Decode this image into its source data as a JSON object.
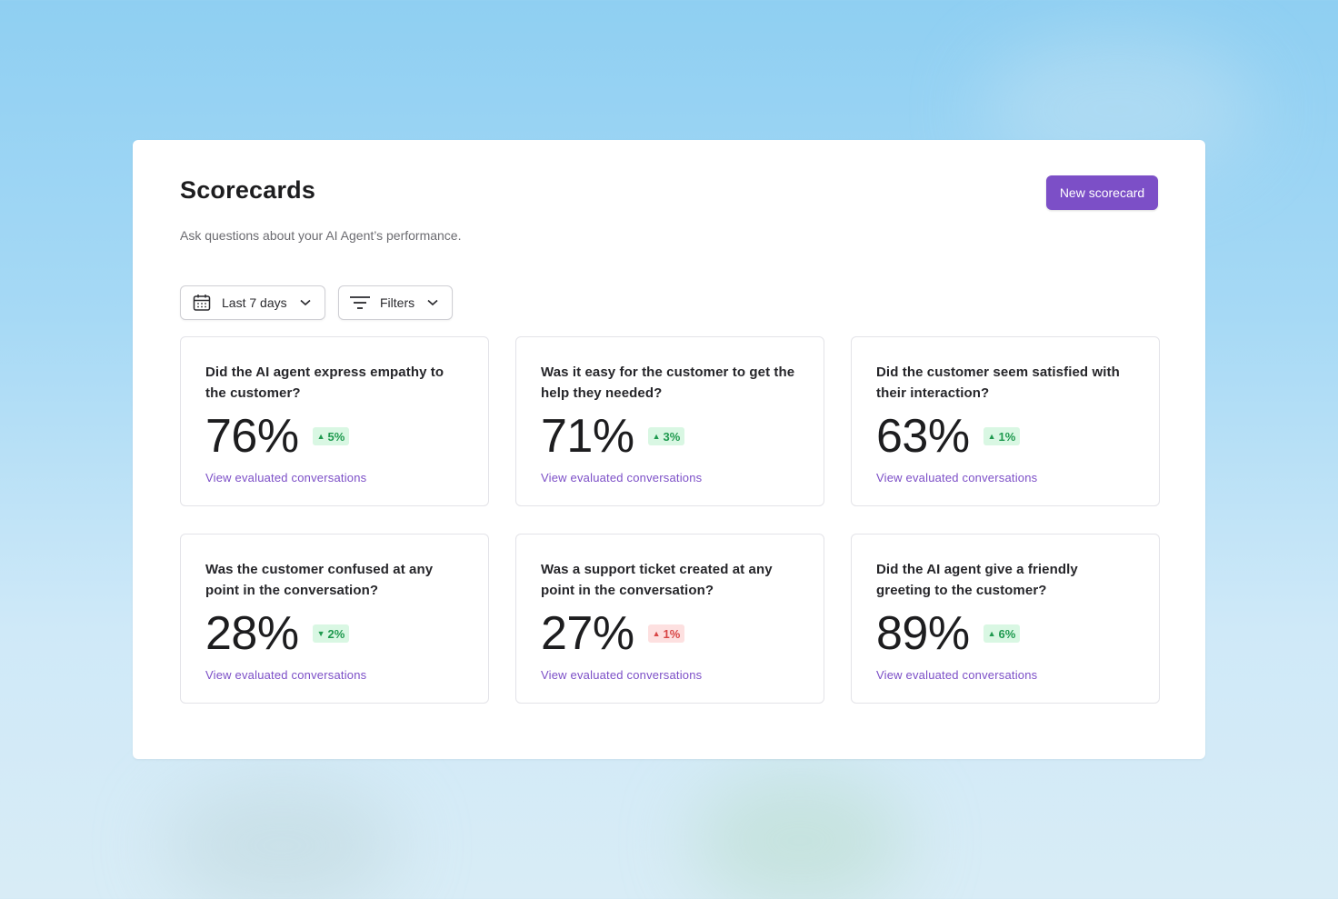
{
  "header": {
    "title": "Scorecards",
    "subtitle": "Ask questions about your AI Agent’s performance.",
    "new_button_label": "New scorecard"
  },
  "toolbar": {
    "date_range": {
      "label": "Last 7 days",
      "icon": "calendar-icon"
    },
    "filters": {
      "label": "Filters",
      "icon": "filter-lines-icon"
    }
  },
  "colors": {
    "accent": "#7c4fc7",
    "positive_bg": "#d9f7e3",
    "positive_text": "#1f9a4f",
    "negative_bg": "#fde0e0",
    "negative_text": "#d84545"
  },
  "scorecards": [
    {
      "question": "Did the AI agent express empathy to the customer?",
      "percent": "76%",
      "delta": "5%",
      "direction": "up",
      "tone": "positive",
      "link": "View evaluated conversations"
    },
    {
      "question": "Was it easy for the customer to get the help they needed?",
      "percent": "71%",
      "delta": "3%",
      "direction": "up",
      "tone": "positive",
      "link": "View evaluated conversations"
    },
    {
      "question": "Did the customer seem satisfied with their interaction?",
      "percent": "63%",
      "delta": "1%",
      "direction": "up",
      "tone": "positive",
      "link": "View evaluated conversations"
    },
    {
      "question": "Was the customer confused at any point in the conversation?",
      "percent": "28%",
      "delta": "2%",
      "direction": "down",
      "tone": "positive",
      "link": "View evaluated conversations"
    },
    {
      "question": "Was a support ticket created at any point in the conversation?",
      "percent": "27%",
      "delta": "1%",
      "direction": "up",
      "tone": "negative",
      "link": "View evaluated conversations"
    },
    {
      "question": "Did the AI agent give a friendly greeting to the customer?",
      "percent": "89%",
      "delta": "6%",
      "direction": "up",
      "tone": "positive",
      "link": "View evaluated conversations"
    }
  ]
}
